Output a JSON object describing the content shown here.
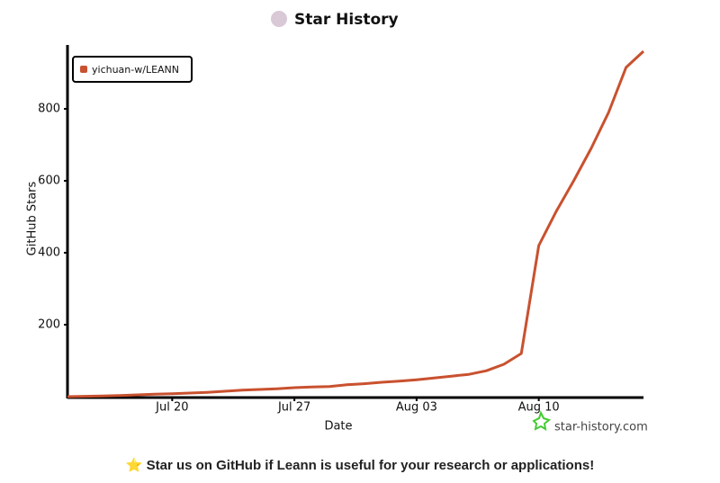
{
  "chart_data": {
    "type": "line",
    "title": "Star History",
    "x_label": "Date",
    "y_label": "GitHub Stars",
    "categories": [
      null,
      null,
      null,
      null,
      null,
      null,
      "Jul 20",
      null,
      null,
      null,
      null,
      null,
      null,
      "Jul 27",
      null,
      null,
      null,
      null,
      null,
      null,
      "Aug 03",
      null,
      null,
      null,
      null,
      null,
      null,
      "Aug 10",
      null,
      null,
      null,
      null,
      null,
      null
    ],
    "series": [
      {
        "name": "yichuan-w/LEANN",
        "color": "#c9512f",
        "values": [
          0,
          1,
          2,
          3,
          5,
          7,
          8,
          10,
          12,
          15,
          18,
          20,
          22,
          25,
          27,
          28,
          33,
          36,
          40,
          43,
          47,
          52,
          57,
          62,
          72,
          90,
          120,
          420,
          515,
          600,
          690,
          790,
          915,
          960
        ]
      }
    ],
    "ylim": [
      0,
      965
    ],
    "yticks": [
      200,
      400,
      600,
      800
    ],
    "grid": false,
    "legend": "top-left",
    "watermark": "star-history.com"
  },
  "footer": "⭐ Star us on GitHub if Leann is useful for your research or applications!"
}
